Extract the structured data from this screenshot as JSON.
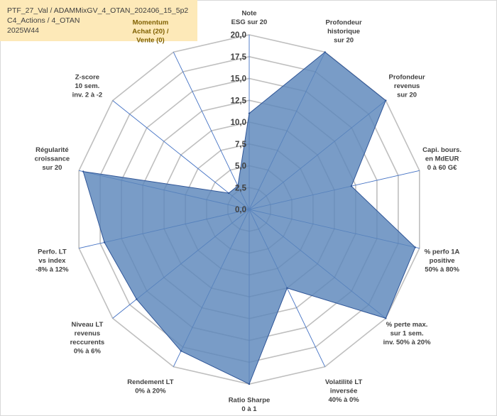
{
  "header": {
    "line1": "PTF_27_Val / ADAMMixGV_4_OTAN_202406_15_5p2",
    "line2": "C4_Actions / 4_OTAN",
    "line3": "2025W44"
  },
  "colors": {
    "fill": "#5b86bb",
    "stroke": "#2f5597",
    "grid": "#bfbfbf",
    "spoke": "#4472c4",
    "header_bg": "#fde9b8"
  },
  "chart_data": {
    "type": "radar",
    "title": "",
    "rmax": 20,
    "ticks": [
      "0,0",
      "2,5",
      "5,0",
      "7,5",
      "10,0",
      "12,5",
      "15,0",
      "17,5",
      "20,0"
    ],
    "tick_values": [
      0,
      2.5,
      5,
      7.5,
      10,
      12.5,
      15,
      17.5,
      20
    ],
    "axes": [
      {
        "lines": [
          "Note",
          "ESG sur 20"
        ],
        "value": 11,
        "highlight": false
      },
      {
        "lines": [
          "Profondeur",
          "historique",
          "sur 20"
        ],
        "value": 20,
        "highlight": false
      },
      {
        "lines": [
          "Profondeur",
          "revenus",
          "sur 20"
        ],
        "value": 20,
        "highlight": false
      },
      {
        "lines": [
          "Capi. bours.",
          "en MdEUR",
          "0 à 60 G€"
        ],
        "value": 12,
        "highlight": false
      },
      {
        "lines": [
          "% perfo 1A",
          "positive",
          "50% à 80%"
        ],
        "value": 19.5,
        "highlight": false
      },
      {
        "lines": [
          "% perte max.",
          "sur 1 sem.",
          "inv. 50% à 20%"
        ],
        "value": 20,
        "highlight": false
      },
      {
        "lines": [
          "Volatilité LT",
          "inversée",
          "40% à 0%"
        ],
        "value": 10,
        "highlight": false
      },
      {
        "lines": [
          "Ratio Sharpe",
          "0 à 1"
        ],
        "value": 20,
        "highlight": false
      },
      {
        "lines": [
          "Rendement LT",
          "0% à 20%"
        ],
        "value": 18,
        "highlight": false
      },
      {
        "lines": [
          "Niveau LT",
          "revenus",
          "reccurents",
          "0% à 6%"
        ],
        "value": 16.5,
        "highlight": false
      },
      {
        "lines": [
          "Perfo. LT",
          "vs index",
          "-8% à 12%"
        ],
        "value": 17,
        "highlight": false
      },
      {
        "lines": [
          "Régularité",
          "croissance",
          "sur 20"
        ],
        "value": 19.5,
        "highlight": false
      },
      {
        "lines": [
          "Z-score",
          "10 sem.",
          "inv. 2 à -2"
        ],
        "value": 3,
        "highlight": false
      },
      {
        "lines": [
          "Momentum",
          "Achat (20) /",
          "Vente (0)"
        ],
        "value": 3,
        "highlight": true
      }
    ]
  }
}
